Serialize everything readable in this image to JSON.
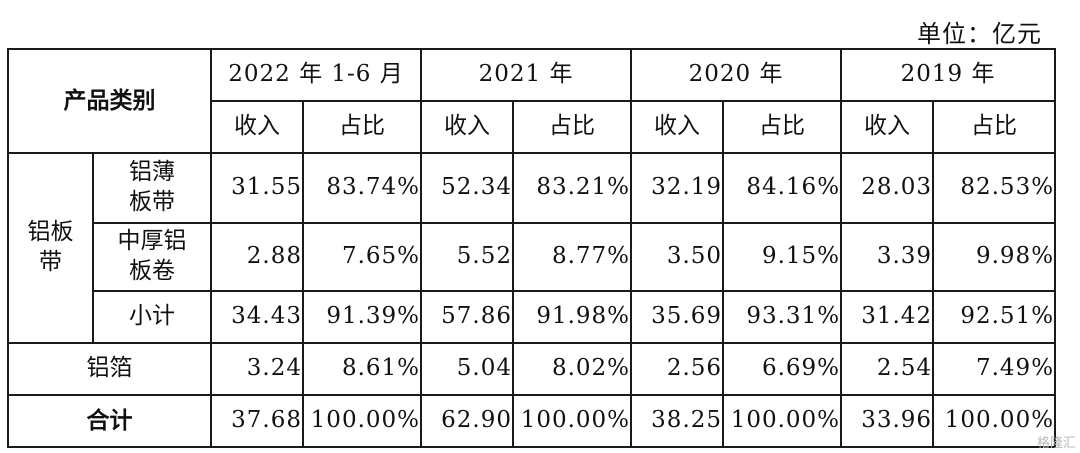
{
  "unit_label": "单位：亿元",
  "header": {
    "category": "产品类别",
    "periods": [
      "2022 年 1-6 月",
      "2021 年",
      "2020 年",
      "2019 年"
    ],
    "revenue": "收入",
    "share": "占比"
  },
  "group": {
    "label_line1": "铝板",
    "label_line2": "带"
  },
  "rows": [
    {
      "sub_line1": "铝薄",
      "sub_line2": "板带",
      "values": [
        "31.55",
        "83.74%",
        "52.34",
        "83.21%",
        "32.19",
        "84.16%",
        "28.03",
        "82.53%"
      ]
    },
    {
      "sub_line1": "中厚铝",
      "sub_line2": "板卷",
      "values": [
        "2.88",
        "7.65%",
        "5.52",
        "8.77%",
        "3.50",
        "9.15%",
        "3.39",
        "9.98%"
      ]
    },
    {
      "sub_line1": "小计",
      "sub_line2": "",
      "values": [
        "34.43",
        "91.39%",
        "57.86",
        "91.98%",
        "35.69",
        "93.31%",
        "31.42",
        "92.51%"
      ]
    }
  ],
  "foil": {
    "label": "铝箔",
    "values": [
      "3.24",
      "8.61%",
      "5.04",
      "8.02%",
      "2.56",
      "6.69%",
      "2.54",
      "7.49%"
    ]
  },
  "total": {
    "label": "合计",
    "values": [
      "37.68",
      "100.00%",
      "62.90",
      "100.00%",
      "38.25",
      "100.00%",
      "33.96",
      "100.00%"
    ]
  },
  "watermark": "格隆汇"
}
